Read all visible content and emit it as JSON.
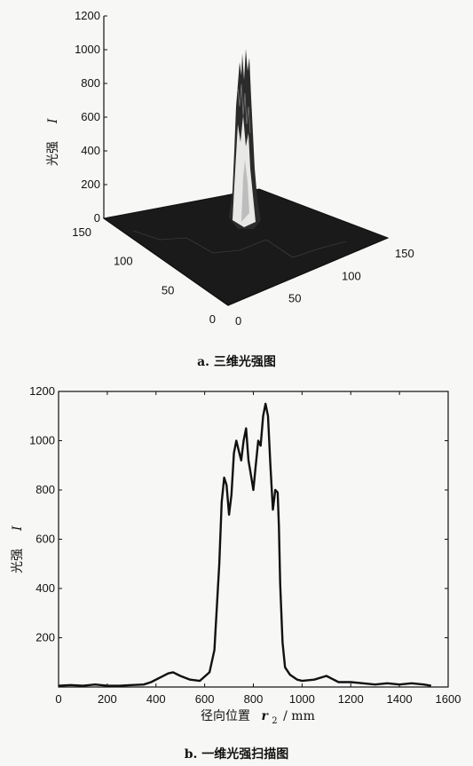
{
  "figure_a": {
    "caption": "a. 三维光强图",
    "chart_data": {
      "type": "surface-3d",
      "zlabel": "光强",
      "zlabel_symbol": "I",
      "zticks": [
        "0",
        "200",
        "400",
        "600",
        "800",
        "1000",
        "1200"
      ],
      "zlim": [
        0,
        1200
      ],
      "left_axis_ticks": [
        "0",
        "50",
        "100",
        "150"
      ],
      "right_axis_ticks": [
        "0",
        "50",
        "100",
        "150"
      ],
      "xlim": [
        0,
        150
      ],
      "ylim": [
        0,
        150
      ],
      "peak_value": 1150
    }
  },
  "figure_b": {
    "caption": "b. 一维光强扫描图",
    "chart_data": {
      "type": "line",
      "xlabel_prefix": "径向位置",
      "xlabel_symbol": "r",
      "xlabel_subscript": "2",
      "xlabel_unit": "/ mm",
      "ylabel": "光强",
      "ylabel_symbol": "I",
      "xlim": [
        0,
        1600
      ],
      "ylim": [
        0,
        1200
      ],
      "xticks": [
        "0",
        "200",
        "400",
        "600",
        "800",
        "1000",
        "1200",
        "1400",
        "1600"
      ],
      "yticks": [
        "200",
        "400",
        "600",
        "800",
        "1000",
        "1200"
      ],
      "series": [
        {
          "x": [
            0,
            50,
            100,
            150,
            200,
            250,
            300,
            350,
            380,
            420,
            450,
            470,
            500,
            540,
            580,
            620,
            640,
            660,
            670,
            680,
            690,
            700,
            710,
            720,
            730,
            740,
            750,
            760,
            770,
            780,
            790,
            800,
            810,
            820,
            830,
            840,
            850,
            860,
            870,
            880,
            890,
            900,
            905,
            910,
            920,
            930,
            950,
            980,
            1000,
            1050,
            1100,
            1120,
            1150,
            1200,
            1250,
            1300,
            1350,
            1400,
            1450,
            1500,
            1530
          ],
          "y": [
            5,
            8,
            5,
            10,
            5,
            5,
            8,
            10,
            20,
            40,
            55,
            60,
            45,
            30,
            25,
            60,
            150,
            500,
            750,
            850,
            820,
            700,
            780,
            950,
            1000,
            960,
            920,
            1000,
            1050,
            920,
            860,
            800,
            900,
            1000,
            980,
            1100,
            1150,
            1100,
            900,
            720,
            800,
            790,
            650,
            420,
            180,
            80,
            50,
            30,
            25,
            30,
            45,
            35,
            20,
            20,
            15,
            10,
            15,
            10,
            15,
            10,
            5
          ]
        }
      ]
    }
  }
}
